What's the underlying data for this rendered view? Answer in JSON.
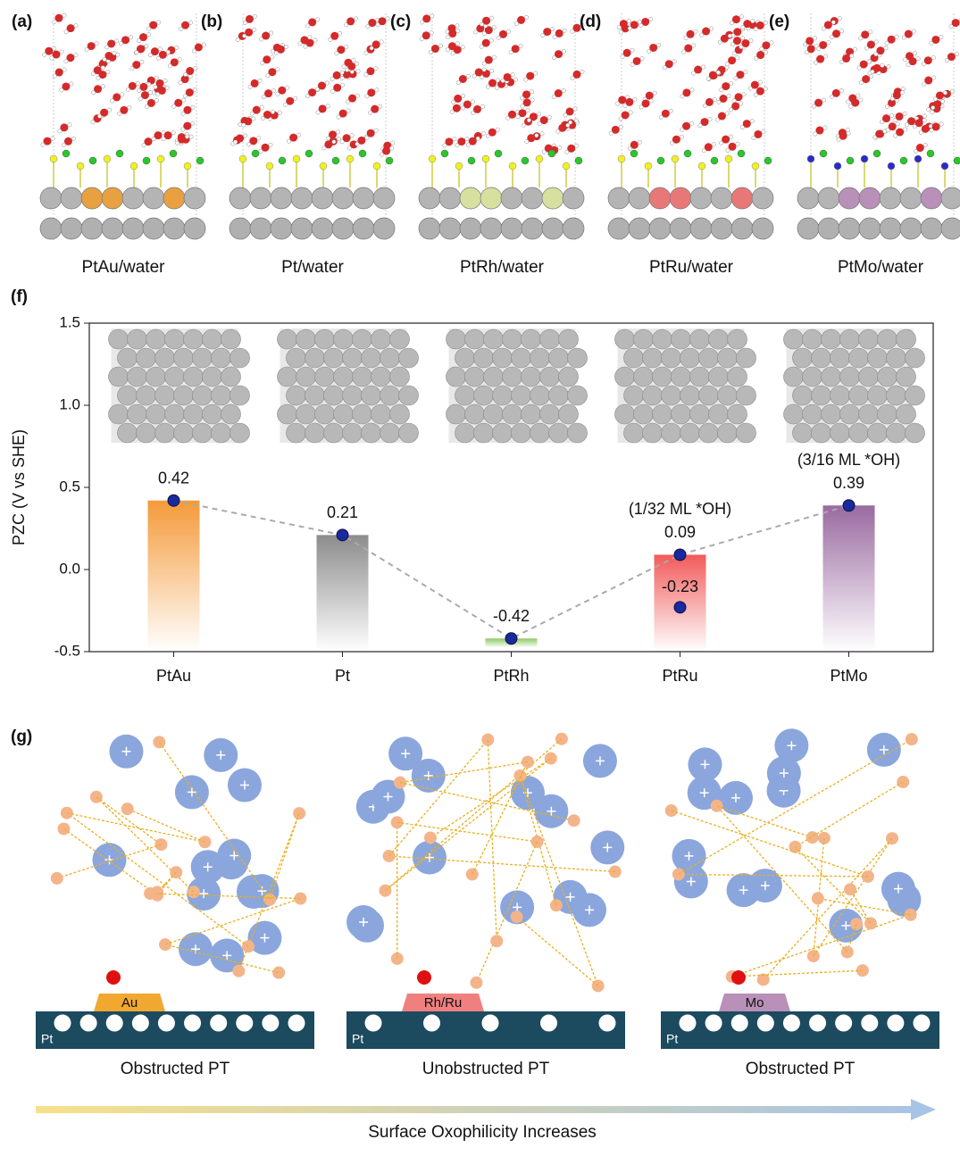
{
  "panels_top": [
    {
      "label": "(a)",
      "caption": "PtAu/water",
      "dopant": "#e8a040"
    },
    {
      "label": "(b)",
      "caption": "Pt/water",
      "dopant": "#a8a8a8"
    },
    {
      "label": "(c)",
      "caption": "PtRh/water",
      "dopant": "#d8e0a0"
    },
    {
      "label": "(d)",
      "caption": "PtRu/water",
      "dopant": "#e87878"
    },
    {
      "label": "(e)",
      "caption": "PtMo/water",
      "dopant": "#b890b8"
    }
  ],
  "chart_data": {
    "type": "bar",
    "panel_label": "(f)",
    "ylabel": "PZC  (V vs SHE)",
    "categories": [
      "PtAu",
      "Pt",
      "PtRh",
      "PtRu",
      "PtMo"
    ],
    "values": [
      0.42,
      0.21,
      -0.42,
      0.09,
      0.39
    ],
    "secondary_values": [
      null,
      null,
      null,
      -0.23,
      null
    ],
    "annotations": [
      null,
      null,
      null,
      "(1/32 ML *OH)",
      "(3/16 ML *OH)"
    ],
    "colors": [
      "#f49a3a",
      "#8c8c8c",
      "#8cc860",
      "#f25a5a",
      "#9a6aa0"
    ],
    "ylim": [
      -0.5,
      1.5
    ],
    "yticks": [
      -0.5,
      {
        "value": 0,
        "label": "0.0"
      },
      0.5,
      {
        "value": 1,
        "label": "1.0"
      },
      1.5
    ]
  },
  "panel_g": {
    "label": "(g)",
    "substrate": "Pt",
    "schemes": [
      {
        "metal": "Au",
        "caption": "Obstructed PT",
        "color": "#f0a830"
      },
      {
        "metal": "Rh/Ru",
        "caption": "Unobstructed PT",
        "color": "#f08080"
      },
      {
        "metal": "Mo",
        "caption": "Obstructed PT",
        "color": "#b890b8"
      }
    ],
    "arrow_label": "Surface Oxophilicity Increases"
  }
}
